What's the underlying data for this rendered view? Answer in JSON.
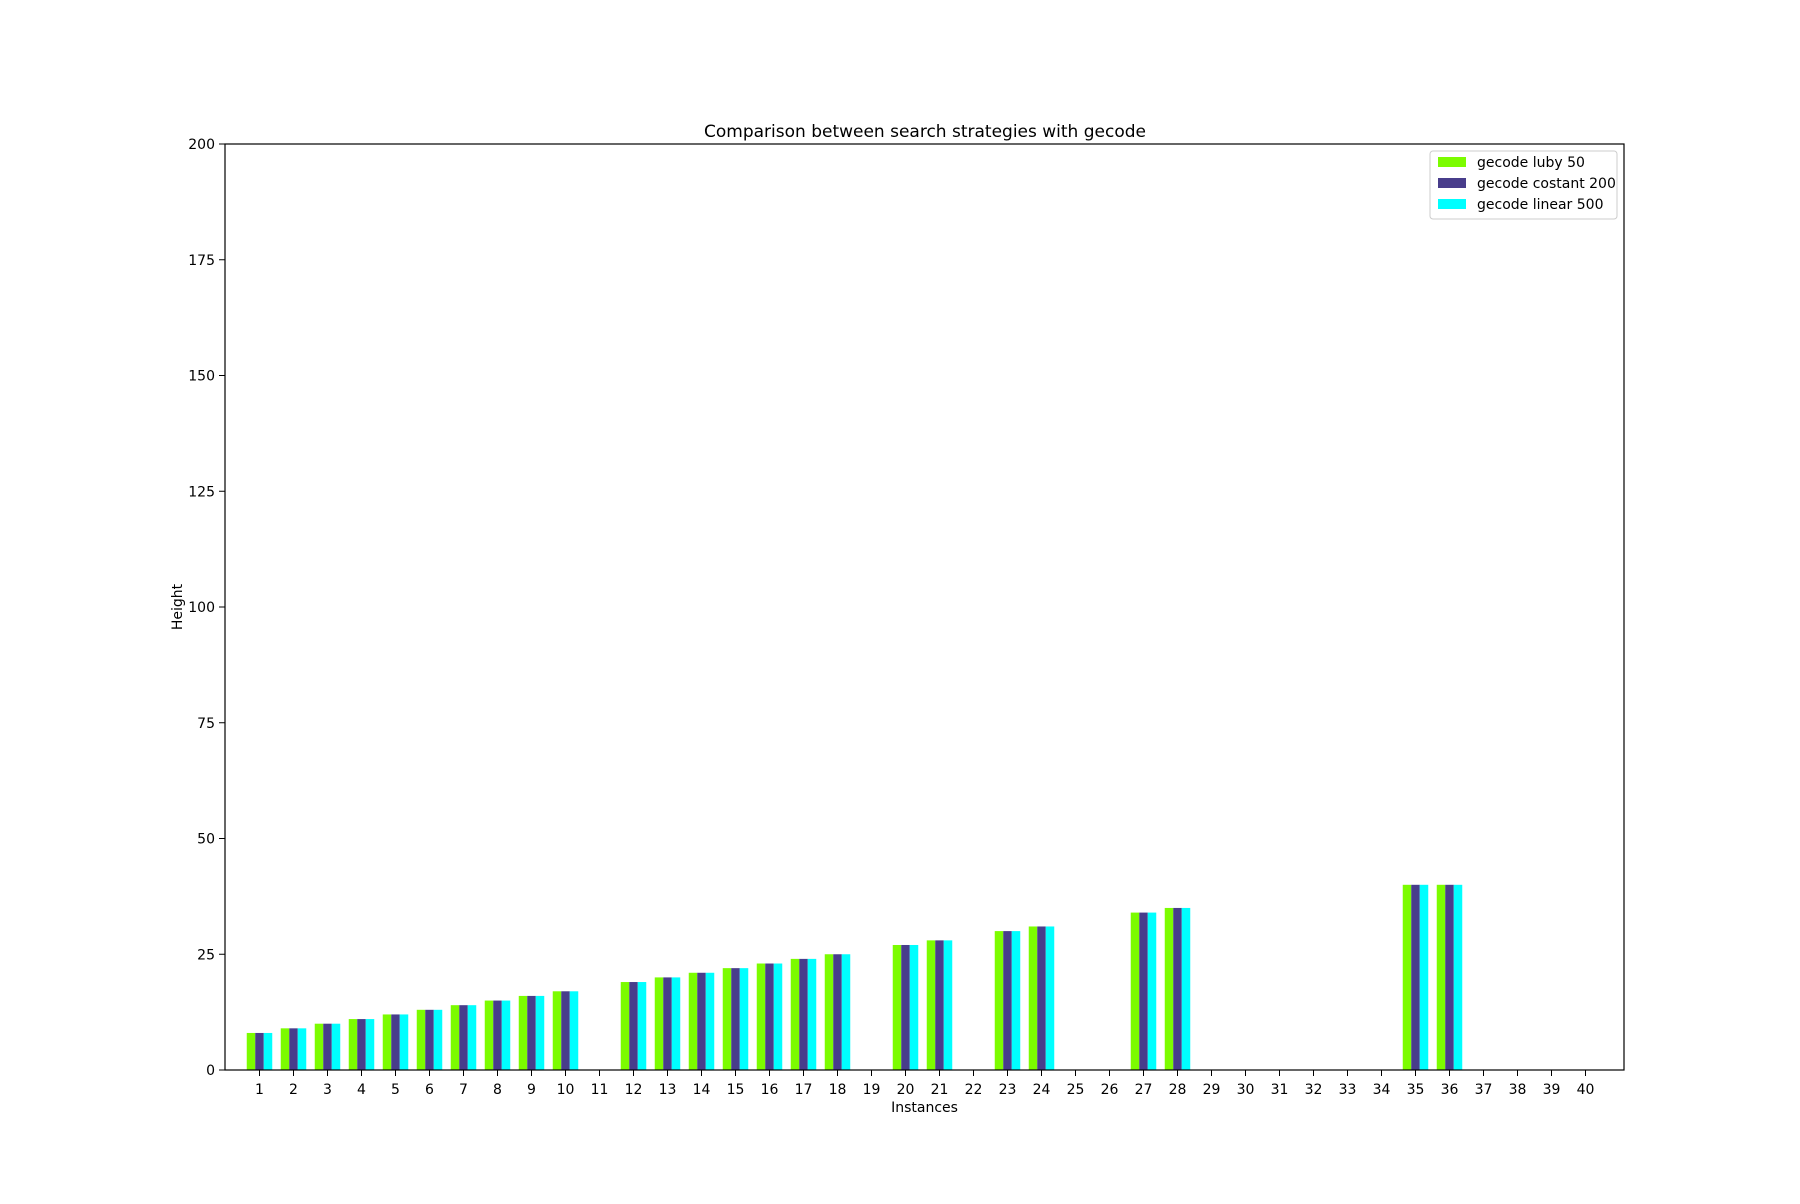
{
  "chart_data": {
    "type": "bar",
    "title": "Comparison between search strategies with gecode",
    "xlabel": "Instances",
    "ylabel": "Height",
    "ylim": [
      0,
      200
    ],
    "yticks": [
      0,
      25,
      50,
      75,
      100,
      125,
      150,
      175,
      200
    ],
    "grid": false,
    "legend_position": "top-right",
    "categories": [
      "1",
      "2",
      "3",
      "4",
      "5",
      "6",
      "7",
      "8",
      "9",
      "10",
      "11",
      "12",
      "13",
      "14",
      "15",
      "16",
      "17",
      "18",
      "19",
      "20",
      "21",
      "22",
      "23",
      "24",
      "25",
      "26",
      "27",
      "28",
      "29",
      "30",
      "31",
      "32",
      "33",
      "34",
      "35",
      "36",
      "37",
      "38",
      "39",
      "40"
    ],
    "series": [
      {
        "name": "gecode luby 50",
        "color": "#7cfc00",
        "values": [
          8,
          9,
          10,
          11,
          12,
          13,
          14,
          15,
          16,
          17,
          0,
          19,
          20,
          21,
          22,
          23,
          24,
          25,
          0,
          27,
          28,
          0,
          30,
          31,
          0,
          0,
          34,
          35,
          0,
          0,
          0,
          0,
          0,
          0,
          40,
          40,
          0,
          0,
          0,
          0
        ]
      },
      {
        "name": "gecode costant 200",
        "color": "#483d8b",
        "values": [
          8,
          9,
          10,
          11,
          12,
          13,
          14,
          15,
          16,
          17,
          0,
          19,
          20,
          21,
          22,
          23,
          24,
          25,
          0,
          27,
          28,
          0,
          30,
          31,
          0,
          0,
          34,
          35,
          0,
          0,
          0,
          0,
          0,
          0,
          40,
          40,
          0,
          0,
          0,
          0
        ]
      },
      {
        "name": "gecode linear 500",
        "color": "#00ffff",
        "values": [
          8,
          9,
          10,
          11,
          12,
          13,
          14,
          15,
          16,
          17,
          0,
          19,
          20,
          21,
          22,
          23,
          24,
          25,
          0,
          27,
          28,
          0,
          30,
          31,
          0,
          0,
          34,
          35,
          0,
          0,
          0,
          0,
          0,
          0,
          40,
          40,
          0,
          0,
          0,
          0
        ]
      }
    ]
  }
}
